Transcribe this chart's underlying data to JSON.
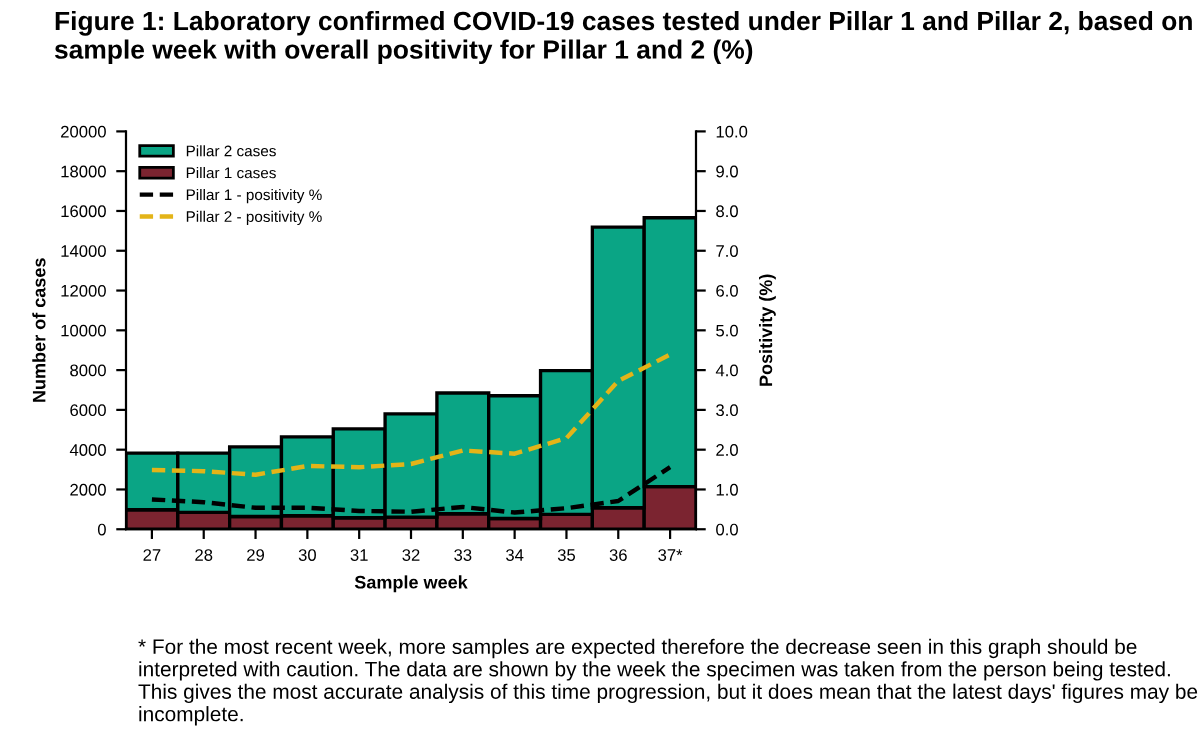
{
  "chart_data": {
    "type": "bar",
    "title": "Figure 1: Laboratory confirmed COVID-19 cases tested under Pillar 1 and Pillar 2, based on sample week with overall positivity for Pillar 1 and 2 (%)",
    "xlabel": "Sample week",
    "ylabel": "Number of cases",
    "y2label": "Positivity (%)",
    "categories": [
      "27",
      "28",
      "29",
      "30",
      "31",
      "32",
      "33",
      "34",
      "35",
      "36",
      "37*"
    ],
    "stacked": true,
    "series": [
      {
        "name": "Pillar 1 cases",
        "color": "#7b2430",
        "values": [
          980,
          850,
          640,
          680,
          580,
          610,
          780,
          540,
          750,
          1080,
          2140
        ]
      },
      {
        "name": "Pillar 2 cases",
        "color": "#0aa585",
        "values": [
          2850,
          2980,
          3500,
          3960,
          4470,
          5190,
          6070,
          6170,
          7220,
          14110,
          13520
        ]
      },
      {
        "name": "Pillar 1 - positivity %",
        "type": "line",
        "axis": "y2",
        "color": "#000000",
        "line_style": "dashed",
        "values": [
          0.75,
          0.68,
          0.54,
          0.54,
          0.46,
          0.44,
          0.56,
          0.42,
          0.53,
          0.71,
          1.56
        ]
      },
      {
        "name": "Pillar 2 - positivity %",
        "type": "line",
        "axis": "y2",
        "color": "#e3b418",
        "line_style": "dashed",
        "values": [
          1.49,
          1.46,
          1.37,
          1.59,
          1.56,
          1.64,
          1.98,
          1.9,
          2.29,
          3.73,
          4.39
        ]
      }
    ],
    "ylim": [
      0,
      20000
    ],
    "yticks": [
      0,
      2000,
      4000,
      6000,
      8000,
      10000,
      12000,
      14000,
      16000,
      18000,
      20000
    ],
    "y2lim": [
      0,
      10
    ],
    "y2ticks": [
      {
        "value": 0,
        "label": "0.0"
      },
      {
        "value": 1,
        "label": "1.0"
      },
      {
        "value": 2,
        "label": "2.0"
      },
      {
        "value": 3,
        "label": "3.0"
      },
      {
        "value": 4,
        "label": "4.0"
      },
      {
        "value": 5,
        "label": "5.0"
      },
      {
        "value": 6,
        "label": "6.0"
      },
      {
        "value": 7,
        "label": "7.0"
      },
      {
        "value": 8,
        "label": "8.0"
      },
      {
        "value": 9,
        "label": "9.0"
      },
      {
        "value": 10,
        "label": "10.0"
      }
    ],
    "grid": false,
    "legend": "top left",
    "marker": "none",
    "annotations": [
      "* For the most recent week, more samples are expected therefore the decrease seen in this graph should be interpreted with caution. The data are shown by the week the specimen was taken from the person being tested. This gives the most accurate analysis of this time progression, but it does mean that the latest days' figures may be incomplete."
    ]
  }
}
